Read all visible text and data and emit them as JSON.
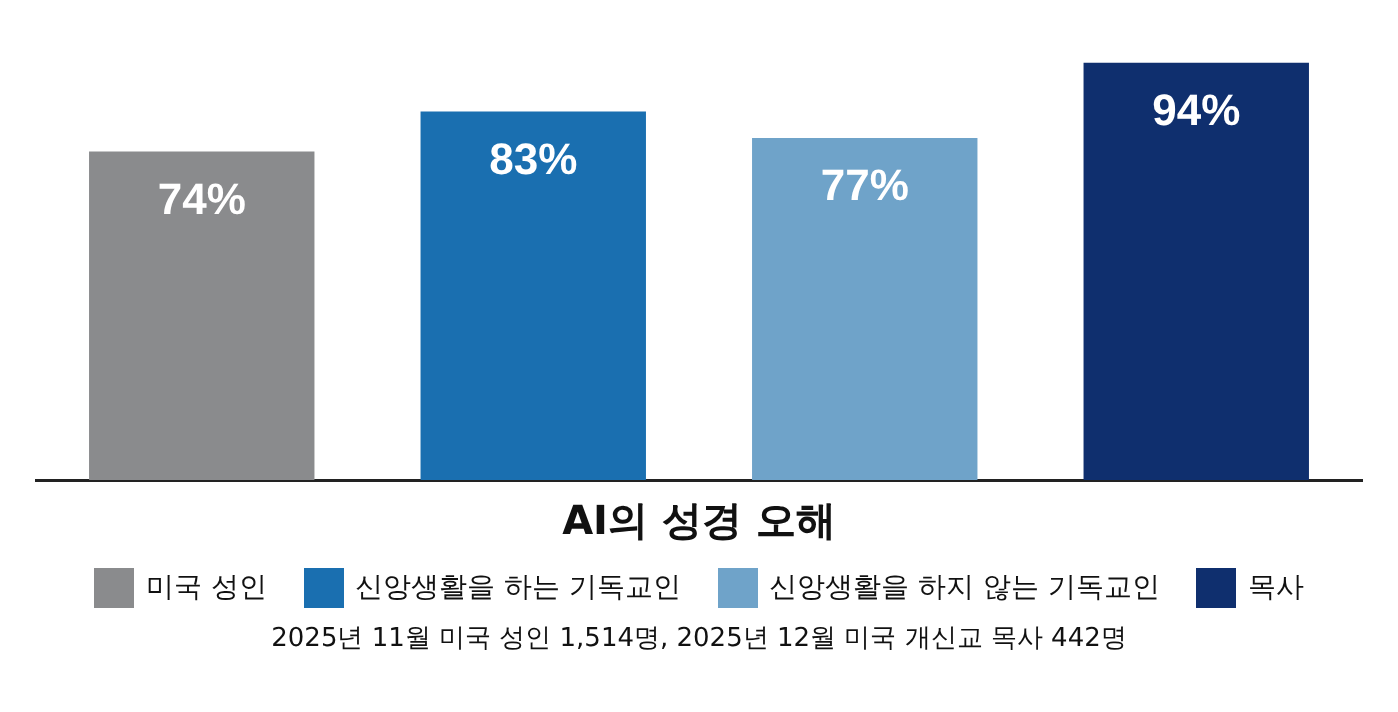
{
  "chart_data": {
    "type": "bar",
    "xlabel": "AI의 성경 오해",
    "categories": [
      "미국 성인",
      "신앙생활을 하는 기독교인",
      "신앙생활을 하지 않는 기독교인",
      "목사"
    ],
    "values": [
      74,
      83,
      77,
      94
    ],
    "colors": [
      "#8a8b8d",
      "#1a6fb0",
      "#6fa3c9",
      "#0f2f6e"
    ],
    "value_labels": [
      "74%",
      "83%",
      "77%",
      "94%"
    ],
    "grid": false,
    "tick_labels": false,
    "annotations": [
      "2025년 11월 미국 성인 1,514명, 2025년 12월 미국 개신교 목사 442명"
    ]
  }
}
